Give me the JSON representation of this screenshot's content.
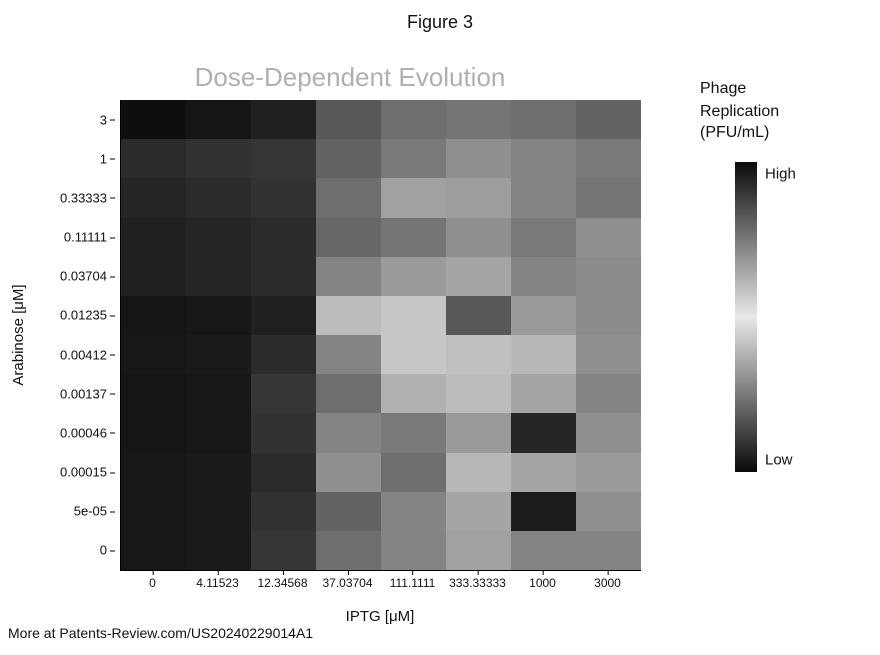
{
  "figure_label": "Figure 3",
  "title": "Dose-Dependent Evolution",
  "title_color": "#b0b0b0",
  "title_fontsize": 26,
  "background_color": "#ffffff",
  "heatmap": {
    "type": "heatmap",
    "x_axis_label": "IPTG  [μM]",
    "y_axis_label": "Arabinose [μM]",
    "x_labels": [
      "0",
      "4.11523",
      "12.34568",
      "37.03704",
      "111.1111",
      "333.33333",
      "1000",
      "3000"
    ],
    "y_labels": [
      "3",
      "1",
      "0.33333",
      "0.11111",
      "0.03704",
      "0.01235",
      "0.00412",
      "0.00137",
      "0.00046",
      "0.00015",
      "5e-05",
      "0"
    ],
    "n_cols": 8,
    "n_rows": 12,
    "axis_label_fontsize": 15,
    "tick_fontsize": 13,
    "values": [
      [
        0.02,
        0.05,
        0.1,
        0.35,
        0.45,
        0.48,
        0.45,
        0.4
      ],
      [
        0.15,
        0.18,
        0.2,
        0.4,
        0.5,
        0.6,
        0.55,
        0.5
      ],
      [
        0.12,
        0.15,
        0.18,
        0.45,
        0.68,
        0.66,
        0.55,
        0.48
      ],
      [
        0.1,
        0.12,
        0.15,
        0.42,
        0.48,
        0.6,
        0.5,
        0.6
      ],
      [
        0.1,
        0.12,
        0.15,
        0.55,
        0.65,
        0.7,
        0.55,
        0.58
      ],
      [
        0.05,
        0.06,
        0.1,
        0.8,
        0.85,
        0.35,
        0.65,
        0.58
      ],
      [
        0.06,
        0.07,
        0.15,
        0.55,
        0.85,
        0.82,
        0.78,
        0.6
      ],
      [
        0.05,
        0.06,
        0.2,
        0.45,
        0.75,
        0.8,
        0.7,
        0.55
      ],
      [
        0.05,
        0.06,
        0.18,
        0.55,
        0.5,
        0.65,
        0.12,
        0.6
      ],
      [
        0.06,
        0.07,
        0.15,
        0.6,
        0.45,
        0.78,
        0.7,
        0.65
      ],
      [
        0.06,
        0.07,
        0.18,
        0.4,
        0.55,
        0.7,
        0.08,
        0.6
      ],
      [
        0.06,
        0.07,
        0.2,
        0.45,
        0.55,
        0.68,
        0.55,
        0.55
      ]
    ],
    "colormap_dark": "#0a0a0a",
    "colormap_light": "#e8e8e8",
    "gridline_color": "#4a4a4a"
  },
  "legend": {
    "title": "Phage",
    "subtitle_line1": "Replication",
    "subtitle_line2": "(PFU/mL)",
    "high_label": "High",
    "low_label": "Low",
    "bar_dark": "#0a0a0a",
    "bar_light": "#e8e8e8",
    "label_fontsize": 15
  },
  "footer": "More at Patents-Review.com/US20240229014A1"
}
